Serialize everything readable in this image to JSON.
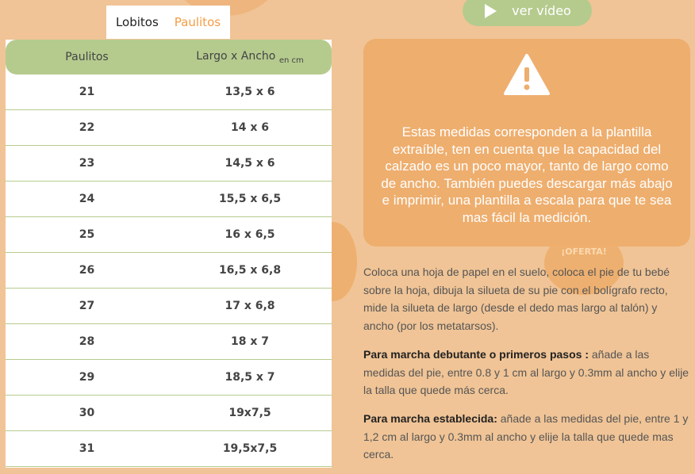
{
  "tabs": [
    {
      "label": "Lobitos",
      "active": false
    },
    {
      "label": "Paulitos",
      "active": true
    }
  ],
  "table": {
    "col1": "Paulitos",
    "col2": "Largo x Ancho",
    "col2_unit": "en cm",
    "rows": [
      [
        "21",
        "13,5 x 6"
      ],
      [
        "22",
        "14 x 6"
      ],
      [
        "23",
        "14,5 x 6"
      ],
      [
        "24",
        "15,5 x 6,5"
      ],
      [
        "25",
        "16 x 6,5"
      ],
      [
        "26",
        "16,5 x 6,8"
      ],
      [
        "27",
        "17 x 6,8"
      ],
      [
        "28",
        "18 x 7"
      ],
      [
        "29",
        "18,5 x 7"
      ],
      [
        "30",
        "19x7,5"
      ],
      [
        "31",
        "19,5x7,5"
      ]
    ]
  },
  "video_button": {
    "label": "ver vídeo",
    "icon": "play-icon"
  },
  "warning": {
    "icon": "warning-icon",
    "text": "Estas medidas corresponden a la plantilla extraíble, ten en cuenta que la capacidad del calzado es un poco mayor, tanto de largo como de ancho. También puedes descargar más abajo e imprimir, una plantilla a escala para que te sea mas fácil la medición."
  },
  "offer_badge": "¡OFERTA!",
  "instructions": {
    "intro": " Coloca una hoja de papel en el suelo, coloca el pie de tu bebé sobre la hoja, dibuja la silueta de su pie con el bolígrafo recto, mide la silueta de largo (desde el dedo mas largo al talón) y ancho (por los metatarsos).",
    "p1_bold": "Para marcha debutante o primeros pasos :",
    "p1_text": " añade a las medidas del pie, entre 0.8 y 1 cm al largo y 0.3mm al ancho y elije la talla que quede más cerca.",
    "p2_bold": "Para marcha establecida:",
    "p2_text": " añade a las medidas del pie, entre 1 y 1,2 cm al largo y 0.3mm al ancho y elije la talla que quede mas cerca."
  },
  "colors": {
    "background": "#f0c496",
    "accent_green": "#b5cb8e",
    "warning_bg": "#eeae6e",
    "active_tab": "#f59d45"
  }
}
